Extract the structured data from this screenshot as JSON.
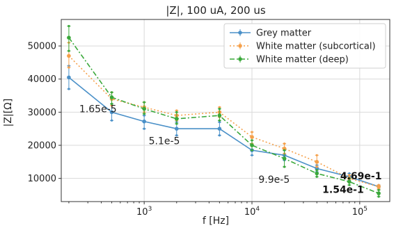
{
  "chart_data": {
    "type": "line",
    "title": "|Z|, 100 uA, 200 us",
    "xlabel": "f [Hz]",
    "ylabel": "|Z|[Ω]",
    "xscale": "log",
    "xlim": [
      170,
      190000
    ],
    "ylim": [
      3000,
      58000
    ],
    "grid": true,
    "legend_position": "top-right",
    "x": [
      200,
      500,
      1000,
      2000,
      5000,
      10000,
      20000,
      40000,
      80000,
      150000
    ],
    "xticks": [
      {
        "value": 1000,
        "base": "10",
        "exp": "3"
      },
      {
        "value": 10000,
        "base": "10",
        "exp": "4"
      },
      {
        "value": 100000,
        "base": "10",
        "exp": "5"
      }
    ],
    "yticks": [
      10000,
      20000,
      30000,
      40000,
      50000
    ],
    "series": [
      {
        "name": "Grey matter",
        "color": "#4a90c8",
        "dash": "",
        "values": [
          40500,
          30000,
          27200,
          25000,
          25000,
          18500,
          17000,
          13000,
          10500,
          7500
        ],
        "err": [
          [
            37000,
            44000
          ],
          [
            27500,
            32500
          ],
          [
            25000,
            29000
          ],
          [
            23000,
            27000
          ],
          [
            23000,
            27000
          ],
          [
            17000,
            20000
          ],
          [
            15500,
            18500
          ],
          [
            12000,
            14000
          ],
          [
            9500,
            11500
          ],
          [
            6800,
            8000
          ]
        ]
      },
      {
        "name": "White matter (subcortical)",
        "color": "#f5a04a",
        "dash": "2,3",
        "values": [
          47000,
          34000,
          31500,
          29000,
          30000,
          22500,
          19000,
          15000,
          10000,
          7500
        ],
        "err": [
          [
            43500,
            51000
          ],
          [
            32000,
            36000
          ],
          [
            30000,
            33000
          ],
          [
            27500,
            30500
          ],
          [
            28500,
            31500
          ],
          [
            20500,
            24000
          ],
          [
            17500,
            20500
          ],
          [
            13500,
            17000
          ],
          [
            9000,
            11000
          ],
          [
            6800,
            8000
          ]
        ]
      },
      {
        "name": "White matter (deep)",
        "color": "#3aa83a",
        "dash": "7,3,2,3",
        "values": [
          52500,
          34500,
          31000,
          28000,
          29000,
          20000,
          16000,
          11500,
          9000,
          5500
        ],
        "err": [
          [
            48500,
            56000
          ],
          [
            32500,
            36000
          ],
          [
            29500,
            33000
          ],
          [
            26500,
            30000
          ],
          [
            27500,
            31000
          ],
          [
            18500,
            21500
          ],
          [
            13500,
            18500
          ],
          [
            10500,
            12500
          ],
          [
            8000,
            10000
          ],
          [
            4500,
            6500
          ]
        ]
      }
    ],
    "annotations": [
      {
        "text": "1.65e-5",
        "x": 250,
        "y": 30000,
        "bold": false
      },
      {
        "text": "5.1e-5",
        "x": 1100,
        "y": 20300,
        "bold": false
      },
      {
        "text": "9.9e-5",
        "x": 11500,
        "y": 8700,
        "bold": false
      },
      {
        "text": "1.54e-1",
        "x": 45000,
        "y": 5600,
        "bold": true
      },
      {
        "text": "4.69e-1",
        "x": 160000,
        "y": 9700,
        "bold": true
      }
    ]
  }
}
